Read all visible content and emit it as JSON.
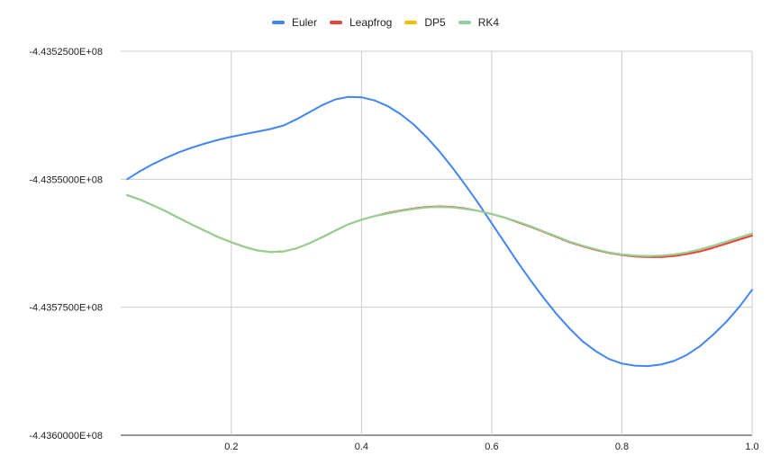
{
  "chart_data": {
    "type": "line",
    "title": "",
    "xlabel": "",
    "ylabel": "",
    "xlim": [
      0.03,
      1.0
    ],
    "ylim": [
      -443600000,
      -443525000
    ],
    "x_ticks": [
      0.2,
      0.4,
      0.6,
      0.8,
      1.0
    ],
    "x_tick_labels": [
      "0.2",
      "0.4",
      "0.6",
      "0.8",
      "1.0"
    ],
    "y_ticks": [
      -443525000,
      -443550000,
      -443575000,
      -443600000
    ],
    "y_tick_labels": [
      "-4.4352500E+08",
      "-4.4355000E+08",
      "-4.4357500E+08",
      "-4.4360000E+08"
    ],
    "grid": true,
    "legend_position": "top",
    "series": [
      {
        "name": "Euler",
        "color": "#4285F4",
        "points": [
          [
            0.04,
            -443550000
          ],
          [
            0.06,
            -443548400
          ],
          [
            0.08,
            -443547000
          ],
          [
            0.1,
            -443545800
          ],
          [
            0.12,
            -443544700
          ],
          [
            0.14,
            -443543800
          ],
          [
            0.16,
            -443543000
          ],
          [
            0.18,
            -443542300
          ],
          [
            0.2,
            -443541700
          ],
          [
            0.22,
            -443541200
          ],
          [
            0.24,
            -443540700
          ],
          [
            0.26,
            -443540200
          ],
          [
            0.28,
            -443539500
          ],
          [
            0.3,
            -443538300
          ],
          [
            0.32,
            -443536900
          ],
          [
            0.34,
            -443535500
          ],
          [
            0.36,
            -443534400
          ],
          [
            0.38,
            -443533900
          ],
          [
            0.4,
            -443534000
          ],
          [
            0.42,
            -443534600
          ],
          [
            0.44,
            -443535700
          ],
          [
            0.46,
            -443537300
          ],
          [
            0.48,
            -443539300
          ],
          [
            0.5,
            -443541800
          ],
          [
            0.52,
            -443544600
          ],
          [
            0.54,
            -443547800
          ],
          [
            0.56,
            -443551200
          ],
          [
            0.58,
            -443554800
          ],
          [
            0.6,
            -443558600
          ],
          [
            0.62,
            -443562400
          ],
          [
            0.64,
            -443566200
          ],
          [
            0.66,
            -443569800
          ],
          [
            0.68,
            -443573200
          ],
          [
            0.7,
            -443576400
          ],
          [
            0.72,
            -443579200
          ],
          [
            0.74,
            -443581700
          ],
          [
            0.76,
            -443583600
          ],
          [
            0.78,
            -443585100
          ],
          [
            0.8,
            -443586000
          ],
          [
            0.82,
            -443586400
          ],
          [
            0.84,
            -443586500
          ],
          [
            0.86,
            -443586200
          ],
          [
            0.88,
            -443585500
          ],
          [
            0.9,
            -443584300
          ],
          [
            0.92,
            -443582600
          ],
          [
            0.94,
            -443580400
          ],
          [
            0.96,
            -443577900
          ],
          [
            0.98,
            -443575000
          ],
          [
            1.0,
            -443571600
          ]
        ]
      },
      {
        "name": "Leapfrog",
        "color": "#EA4335",
        "points": [
          [
            0.04,
            -443553100
          ],
          [
            0.06,
            -443554000
          ],
          [
            0.08,
            -443555100
          ],
          [
            0.1,
            -443556300
          ],
          [
            0.12,
            -443557600
          ],
          [
            0.14,
            -443558900
          ],
          [
            0.16,
            -443560100
          ],
          [
            0.18,
            -443561300
          ],
          [
            0.2,
            -443562300
          ],
          [
            0.22,
            -443563200
          ],
          [
            0.24,
            -443563900
          ],
          [
            0.26,
            -443564200
          ],
          [
            0.28,
            -443564100
          ],
          [
            0.3,
            -443563500
          ],
          [
            0.32,
            -443562500
          ],
          [
            0.34,
            -443561300
          ],
          [
            0.36,
            -443560000
          ],
          [
            0.38,
            -443558800
          ],
          [
            0.4,
            -443557900
          ],
          [
            0.42,
            -443557200
          ],
          [
            0.44,
            -443556600
          ],
          [
            0.46,
            -443556100
          ],
          [
            0.48,
            -443555700
          ],
          [
            0.5,
            -443555400
          ],
          [
            0.52,
            -443555300
          ],
          [
            0.54,
            -443555400
          ],
          [
            0.56,
            -443555700
          ],
          [
            0.58,
            -443556200
          ],
          [
            0.6,
            -443556800
          ],
          [
            0.62,
            -443557500
          ],
          [
            0.64,
            -443558400
          ],
          [
            0.66,
            -443559300
          ],
          [
            0.68,
            -443560300
          ],
          [
            0.7,
            -443561300
          ],
          [
            0.72,
            -443562300
          ],
          [
            0.74,
            -443563100
          ],
          [
            0.76,
            -443563800
          ],
          [
            0.78,
            -443564400
          ],
          [
            0.8,
            -443564800
          ],
          [
            0.82,
            -443565100
          ],
          [
            0.84,
            -443565200
          ],
          [
            0.86,
            -443565200
          ],
          [
            0.88,
            -443565000
          ],
          [
            0.9,
            -443564600
          ],
          [
            0.92,
            -443564100
          ],
          [
            0.94,
            -443563400
          ],
          [
            0.96,
            -443562600
          ],
          [
            0.98,
            -443561800
          ],
          [
            1.0,
            -443561000
          ]
        ]
      },
      {
        "name": "DP5",
        "color": "#FBBC04",
        "points": [
          [
            0.04,
            -443553100
          ],
          [
            0.06,
            -443554000
          ],
          [
            0.08,
            -443555100
          ],
          [
            0.1,
            -443556300
          ],
          [
            0.12,
            -443557600
          ],
          [
            0.14,
            -443558900
          ],
          [
            0.16,
            -443560100
          ],
          [
            0.18,
            -443561300
          ],
          [
            0.2,
            -443562300
          ],
          [
            0.22,
            -443563200
          ],
          [
            0.24,
            -443563900
          ],
          [
            0.26,
            -443564200
          ],
          [
            0.28,
            -443564100
          ],
          [
            0.3,
            -443563500
          ],
          [
            0.32,
            -443562500
          ],
          [
            0.34,
            -443561300
          ],
          [
            0.36,
            -443560000
          ],
          [
            0.38,
            -443558800
          ],
          [
            0.4,
            -443557900
          ],
          [
            0.42,
            -443557200
          ],
          [
            0.44,
            -443556700
          ],
          [
            0.46,
            -443556200
          ],
          [
            0.48,
            -443555800
          ],
          [
            0.5,
            -443555500
          ],
          [
            0.52,
            -443555400
          ],
          [
            0.54,
            -443555500
          ],
          [
            0.56,
            -443555800
          ],
          [
            0.58,
            -443556200
          ],
          [
            0.6,
            -443556800
          ],
          [
            0.62,
            -443557500
          ],
          [
            0.64,
            -443558300
          ],
          [
            0.66,
            -443559200
          ],
          [
            0.68,
            -443560200
          ],
          [
            0.7,
            -443561200
          ],
          [
            0.72,
            -443562200
          ],
          [
            0.74,
            -443563000
          ],
          [
            0.76,
            -443563700
          ],
          [
            0.78,
            -443564300
          ],
          [
            0.8,
            -443564700
          ],
          [
            0.82,
            -443564900
          ],
          [
            0.84,
            -443565000
          ],
          [
            0.86,
            -443564900
          ],
          [
            0.88,
            -443564700
          ],
          [
            0.9,
            -443564300
          ],
          [
            0.92,
            -443563700
          ],
          [
            0.94,
            -443563000
          ],
          [
            0.96,
            -443562200
          ],
          [
            0.98,
            -443561400
          ],
          [
            1.0,
            -443560600
          ]
        ]
      },
      {
        "name": "RK4",
        "color": "#8FD19E",
        "points": [
          [
            0.04,
            -443553100
          ],
          [
            0.06,
            -443554000
          ],
          [
            0.08,
            -443555100
          ],
          [
            0.1,
            -443556300
          ],
          [
            0.12,
            -443557600
          ],
          [
            0.14,
            -443558900
          ],
          [
            0.16,
            -443560100
          ],
          [
            0.18,
            -443561300
          ],
          [
            0.2,
            -443562300
          ],
          [
            0.22,
            -443563200
          ],
          [
            0.24,
            -443563900
          ],
          [
            0.26,
            -443564200
          ],
          [
            0.28,
            -443564100
          ],
          [
            0.3,
            -443563500
          ],
          [
            0.32,
            -443562500
          ],
          [
            0.34,
            -443561300
          ],
          [
            0.36,
            -443560000
          ],
          [
            0.38,
            -443558800
          ],
          [
            0.4,
            -443557900
          ],
          [
            0.42,
            -443557200
          ],
          [
            0.44,
            -443556700
          ],
          [
            0.46,
            -443556200
          ],
          [
            0.48,
            -443555800
          ],
          [
            0.5,
            -443555500
          ],
          [
            0.52,
            -443555400
          ],
          [
            0.54,
            -443555500
          ],
          [
            0.56,
            -443555800
          ],
          [
            0.58,
            -443556200
          ],
          [
            0.6,
            -443556800
          ],
          [
            0.62,
            -443557500
          ],
          [
            0.64,
            -443558300
          ],
          [
            0.66,
            -443559200
          ],
          [
            0.68,
            -443560200
          ],
          [
            0.7,
            -443561200
          ],
          [
            0.72,
            -443562200
          ],
          [
            0.74,
            -443563000
          ],
          [
            0.76,
            -443563700
          ],
          [
            0.78,
            -443564300
          ],
          [
            0.8,
            -443564700
          ],
          [
            0.82,
            -443564900
          ],
          [
            0.84,
            -443565000
          ],
          [
            0.86,
            -443564900
          ],
          [
            0.88,
            -443564700
          ],
          [
            0.9,
            -443564300
          ],
          [
            0.92,
            -443563700
          ],
          [
            0.94,
            -443563000
          ],
          [
            0.96,
            -443562200
          ],
          [
            0.98,
            -443561400
          ],
          [
            1.0,
            -443560600
          ]
        ]
      }
    ]
  }
}
